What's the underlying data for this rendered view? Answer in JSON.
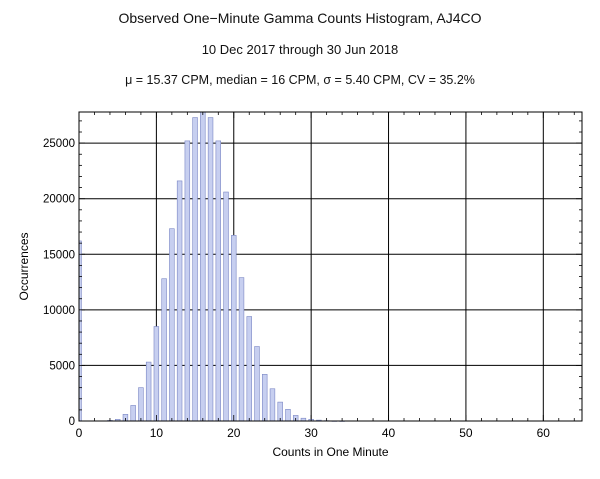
{
  "chart_data": {
    "type": "bar",
    "title": "Observed One−Minute Gamma Counts Histogram, AJ4CO",
    "subtitle": "10 Dec 2017 through 30 Jun 2018",
    "stats": "μ = 15.37 CPM,   median = 16 CPM,   σ = 5.40 CPM,   CV = 35.2%",
    "xlabel": "Counts in One Minute",
    "ylabel": "Occurrences",
    "xlim": [
      0,
      65
    ],
    "ylim": [
      0,
      27800
    ],
    "grid": true,
    "xticks": [
      0,
      10,
      20,
      30,
      40,
      50,
      60
    ],
    "yticks": [
      0,
      5000,
      10000,
      15000,
      20000,
      25000
    ],
    "x": [
      0,
      1,
      2,
      3,
      4,
      5,
      6,
      7,
      8,
      9,
      10,
      11,
      12,
      13,
      14,
      15,
      16,
      17,
      18,
      19,
      20,
      21,
      22,
      23,
      24,
      25,
      26,
      27,
      28,
      29,
      30,
      31,
      32,
      33,
      34,
      35
    ],
    "values": [
      16200,
      0,
      0,
      0,
      50,
      150,
      600,
      1400,
      3000,
      5300,
      8500,
      12800,
      17300,
      21600,
      25200,
      27300,
      28000,
      27300,
      25200,
      20600,
      16700,
      12900,
      9400,
      6700,
      4200,
      2900,
      1700,
      1050,
      500,
      250,
      150,
      80,
      30,
      10,
      5,
      0
    ],
    "bar_color": "#c7cff0",
    "bar_edge": "#7a86c4"
  }
}
